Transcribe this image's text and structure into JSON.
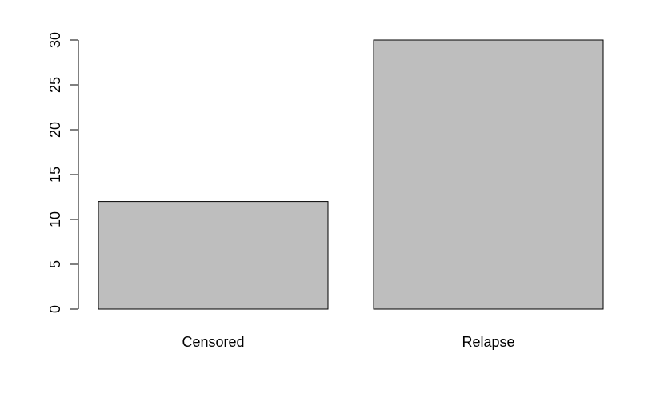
{
  "chart_data": {
    "type": "bar",
    "categories": [
      "Censored",
      "Relapse"
    ],
    "values": [
      12,
      30
    ],
    "title": "",
    "xlabel": "",
    "ylabel": "",
    "ylim": [
      0,
      30
    ],
    "yticks": [
      0,
      5,
      10,
      15,
      20,
      25,
      30
    ],
    "ytick_labels": [
      "0",
      "5",
      "10",
      "15",
      "20",
      "25",
      "30"
    ],
    "grid": false,
    "bar_color": "#bebebe",
    "border_color": "#000000"
  }
}
